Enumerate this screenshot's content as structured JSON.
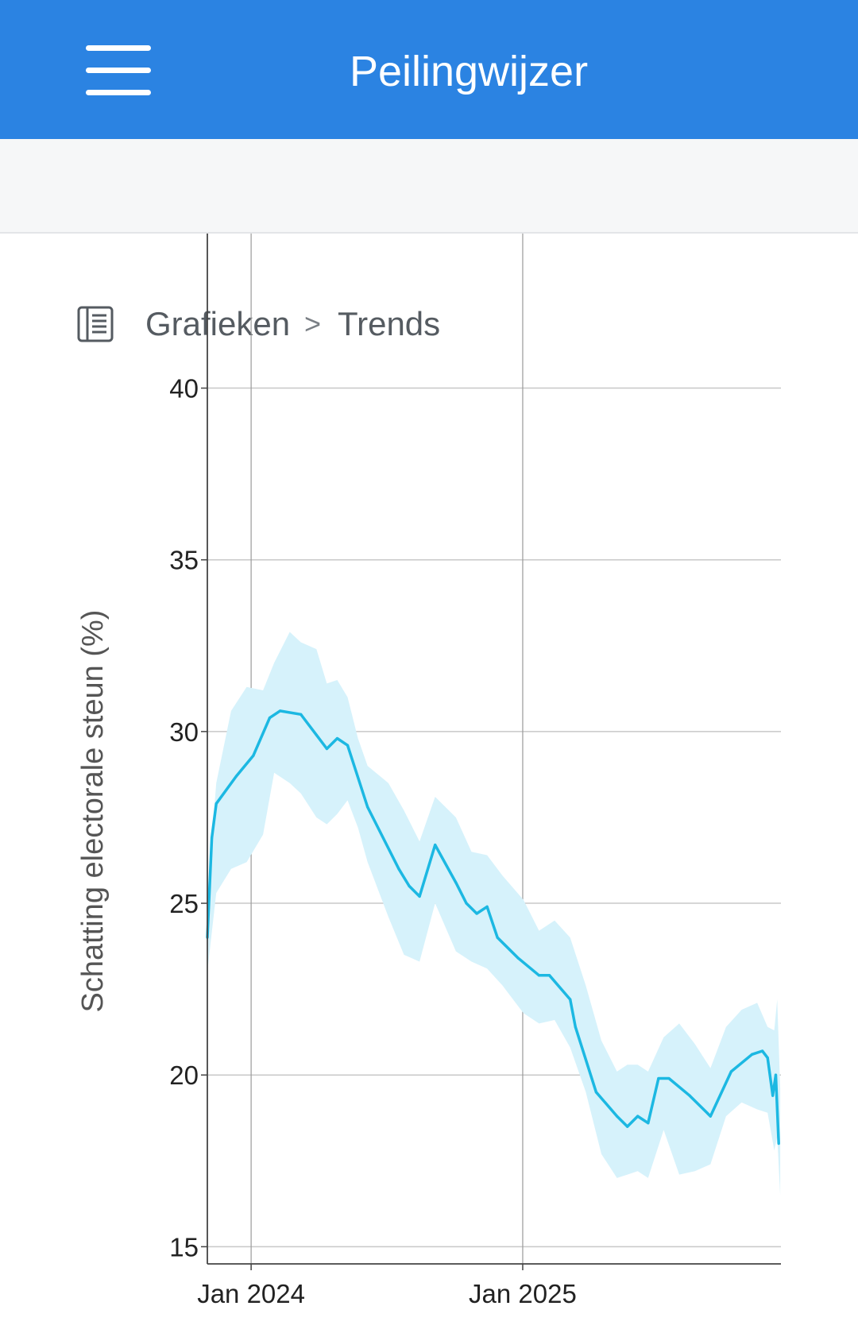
{
  "header": {
    "title": "Peilingwijzer",
    "menu_icon": "hamburger-menu-icon",
    "color": "#2b83e2"
  },
  "breadcrumb": {
    "icon": "document-list-icon",
    "items": [
      "Grafieken",
      "Trends"
    ],
    "separator": ">"
  },
  "chart_data": {
    "type": "line",
    "title": "",
    "xlabel": "",
    "ylabel": "Schatting electorale steun (%)",
    "ylim": [
      14.5,
      44.5
    ],
    "xlim": [
      "2023-11-03",
      "2025-12-15"
    ],
    "y_ticks": [
      15,
      20,
      25,
      30,
      35,
      40
    ],
    "x_ticks": [
      {
        "date": "2024-01-01",
        "label": "Jan 2024"
      },
      {
        "date": "2025-01-01",
        "label": "Jan 2025"
      }
    ],
    "grid": "horizontal at y ticks; vertical at x ticks",
    "line_color": "#1cb8e2",
    "band_color": "#d6f2fb",
    "series": [
      {
        "values": [
          [
            "2023-11-03",
            24.0
          ],
          [
            "2023-11-09",
            26.9
          ],
          [
            "2023-11-15",
            27.9
          ],
          [
            "2023-12-12",
            28.7
          ],
          [
            "2024-01-04",
            29.3
          ],
          [
            "2024-01-26",
            30.4
          ],
          [
            "2024-02-09",
            30.6
          ],
          [
            "2024-03-08",
            30.5
          ],
          [
            "2024-03-29",
            29.9
          ],
          [
            "2024-04-12",
            29.5
          ],
          [
            "2024-04-26",
            29.8
          ],
          [
            "2024-05-10",
            29.6
          ],
          [
            "2024-06-06",
            27.8
          ],
          [
            "2024-06-13",
            27.5
          ],
          [
            "2024-07-18",
            26.0
          ],
          [
            "2024-08-01",
            25.5
          ],
          [
            "2024-08-15",
            25.2
          ],
          [
            "2024-09-05",
            26.7
          ],
          [
            "2024-10-03",
            25.6
          ],
          [
            "2024-10-17",
            25.0
          ],
          [
            "2024-10-31",
            24.7
          ],
          [
            "2024-11-14",
            24.9
          ],
          [
            "2024-11-28",
            24.0
          ],
          [
            "2024-12-26",
            23.4
          ],
          [
            "2025-01-23",
            22.9
          ],
          [
            "2025-02-06",
            22.9
          ],
          [
            "2025-03-06",
            22.2
          ],
          [
            "2025-03-13",
            21.4
          ],
          [
            "2025-04-10",
            19.5
          ],
          [
            "2025-05-08",
            18.8
          ],
          [
            "2025-05-22",
            18.5
          ],
          [
            "2025-06-05",
            18.8
          ],
          [
            "2025-06-19",
            18.6
          ],
          [
            "2025-07-03",
            19.9
          ],
          [
            "2025-07-17",
            19.9
          ],
          [
            "2025-08-14",
            19.4
          ],
          [
            "2025-09-11",
            18.8
          ],
          [
            "2025-10-09",
            20.1
          ],
          [
            "2025-11-06",
            20.6
          ],
          [
            "2025-11-20",
            20.7
          ],
          [
            "2025-11-27",
            20.5
          ],
          [
            "2025-12-04",
            19.4
          ],
          [
            "2025-12-08",
            20.0
          ],
          [
            "2025-12-12",
            18.0
          ]
        ],
        "band_upper": [
          [
            "2023-11-03",
            25.2
          ],
          [
            "2023-11-15",
            28.5
          ],
          [
            "2023-12-05",
            30.6
          ],
          [
            "2023-12-26",
            31.3
          ],
          [
            "2024-01-17",
            31.2
          ],
          [
            "2024-02-01",
            32.0
          ],
          [
            "2024-02-22",
            32.9
          ],
          [
            "2024-03-08",
            32.6
          ],
          [
            "2024-03-29",
            32.4
          ],
          [
            "2024-04-12",
            31.4
          ],
          [
            "2024-04-26",
            31.5
          ],
          [
            "2024-05-10",
            31.0
          ],
          [
            "2024-05-24",
            29.8
          ],
          [
            "2024-06-06",
            29.0
          ],
          [
            "2024-07-04",
            28.5
          ],
          [
            "2024-07-25",
            27.7
          ],
          [
            "2024-08-15",
            26.8
          ],
          [
            "2024-09-05",
            28.1
          ],
          [
            "2024-10-03",
            27.5
          ],
          [
            "2024-10-24",
            26.5
          ],
          [
            "2024-11-14",
            26.4
          ],
          [
            "2024-12-05",
            25.8
          ],
          [
            "2025-01-02",
            25.1
          ],
          [
            "2025-01-23",
            24.2
          ],
          [
            "2025-02-13",
            24.5
          ],
          [
            "2025-03-06",
            24.0
          ],
          [
            "2025-03-27",
            22.6
          ],
          [
            "2025-04-17",
            21.0
          ],
          [
            "2025-05-08",
            20.1
          ],
          [
            "2025-05-22",
            20.3
          ],
          [
            "2025-06-05",
            20.3
          ],
          [
            "2025-06-19",
            20.1
          ],
          [
            "2025-07-10",
            21.1
          ],
          [
            "2025-07-31",
            21.5
          ],
          [
            "2025-08-21",
            20.9
          ],
          [
            "2025-09-11",
            20.2
          ],
          [
            "2025-10-02",
            21.4
          ],
          [
            "2025-10-23",
            21.9
          ],
          [
            "2025-11-13",
            22.1
          ],
          [
            "2025-11-27",
            21.4
          ],
          [
            "2025-12-06",
            21.3
          ],
          [
            "2025-12-10",
            22.2
          ],
          [
            "2025-12-14",
            19.6
          ]
        ],
        "band_lower": [
          [
            "2023-11-03",
            23.0
          ],
          [
            "2023-11-15",
            25.3
          ],
          [
            "2023-12-05",
            26.0
          ],
          [
            "2023-12-26",
            26.2
          ],
          [
            "2024-01-17",
            27.0
          ],
          [
            "2024-02-01",
            28.8
          ],
          [
            "2024-02-22",
            28.5
          ],
          [
            "2024-03-08",
            28.2
          ],
          [
            "2024-03-29",
            27.5
          ],
          [
            "2024-04-12",
            27.3
          ],
          [
            "2024-04-26",
            27.6
          ],
          [
            "2024-05-10",
            28.0
          ],
          [
            "2024-05-24",
            27.2
          ],
          [
            "2024-06-06",
            26.2
          ],
          [
            "2024-07-04",
            24.6
          ],
          [
            "2024-07-25",
            23.5
          ],
          [
            "2024-08-15",
            23.3
          ],
          [
            "2024-09-05",
            25.0
          ],
          [
            "2024-10-03",
            23.6
          ],
          [
            "2024-10-24",
            23.3
          ],
          [
            "2024-11-14",
            23.1
          ],
          [
            "2024-12-05",
            22.6
          ],
          [
            "2025-01-02",
            21.8
          ],
          [
            "2025-01-23",
            21.5
          ],
          [
            "2025-02-13",
            21.6
          ],
          [
            "2025-03-06",
            20.8
          ],
          [
            "2025-03-27",
            19.5
          ],
          [
            "2025-04-17",
            17.7
          ],
          [
            "2025-05-08",
            17.0
          ],
          [
            "2025-05-22",
            17.1
          ],
          [
            "2025-06-05",
            17.2
          ],
          [
            "2025-06-19",
            17.0
          ],
          [
            "2025-07-10",
            18.4
          ],
          [
            "2025-07-31",
            17.1
          ],
          [
            "2025-08-21",
            17.2
          ],
          [
            "2025-09-11",
            17.4
          ],
          [
            "2025-10-02",
            18.8
          ],
          [
            "2025-10-23",
            19.2
          ],
          [
            "2025-11-13",
            19.0
          ],
          [
            "2025-11-27",
            18.9
          ],
          [
            "2025-12-06",
            17.8
          ],
          [
            "2025-12-10",
            18.2
          ],
          [
            "2025-12-14",
            16.5
          ]
        ]
      }
    ]
  }
}
